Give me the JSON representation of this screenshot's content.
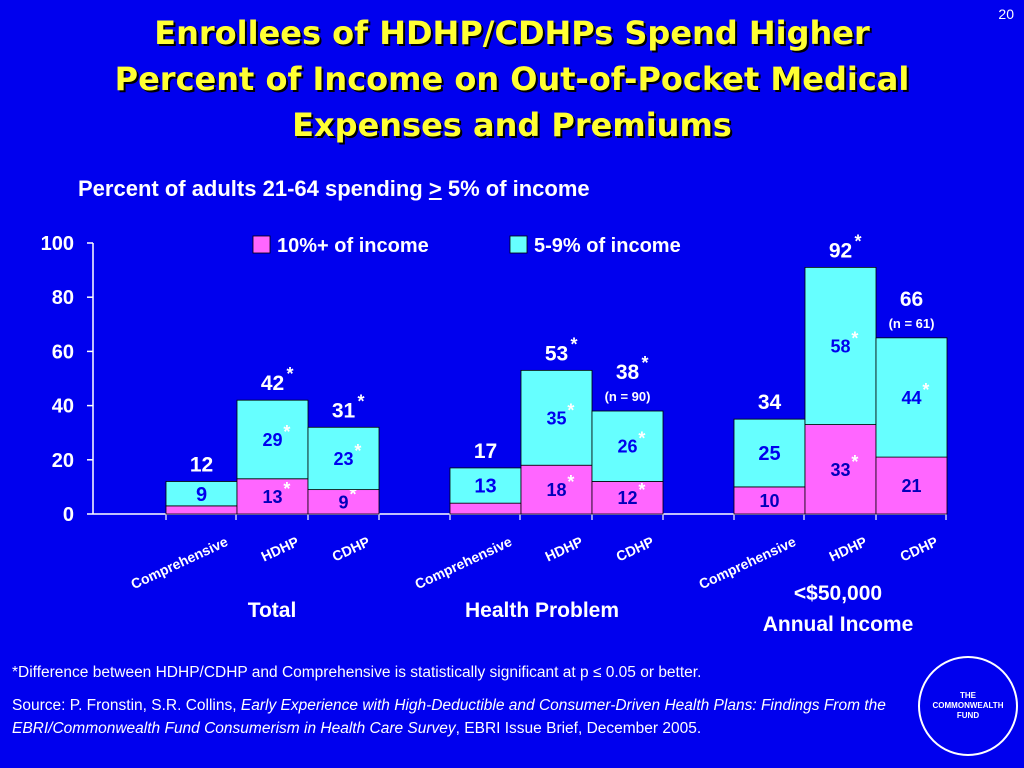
{
  "slide_number": "20",
  "title_lines": [
    "Enrollees of HDHP/CDHPs Spend Higher",
    "Percent of Income on Out-of-Pocket Medical",
    "Expenses and Premiums"
  ],
  "subtitle": {
    "before": "Percent of adults 21-64 spending ",
    "symbol": ">",
    "after": " 5% of income"
  },
  "footnote": "*Difference between HDHP/CDHP and Comprehensive is statistically significant at p ≤ 0.05 or better.",
  "source": {
    "prefix": "Source: P. Fronstin, S.R. Collins, ",
    "italic": "Early Experience with High-Deductible and Consumer-Driven Health Plans: Findings From the EBRI/Commonwealth Fund Consumerism in Health Care Survey",
    "suffix": ", EBRI Issue Brief, December 2005."
  },
  "logo_lines": [
    "THE",
    "COMMONWEALTH",
    "FUND"
  ],
  "colors": {
    "background": "#0000ee",
    "title": "#ffff33",
    "series_10plus": "#ff66ff",
    "series_5to9": "#66ffff"
  },
  "chart_data": {
    "type": "bar",
    "stacked": true,
    "ylim": [
      0,
      100
    ],
    "yticks": [
      0,
      20,
      40,
      60,
      80,
      100
    ],
    "grid": false,
    "legend_position": "top",
    "series": [
      {
        "name": "10%+ of income",
        "color": "#ff66ff"
      },
      {
        "name": "5-9% of income",
        "color": "#66ffff"
      }
    ],
    "groups": [
      {
        "label": "Total",
        "bars": [
          {
            "category": "Comprehensive",
            "values": [
              3,
              9
            ],
            "labels": [
              "",
              "9"
            ],
            "stars": [
              false,
              false
            ],
            "total": "12",
            "total_star": false,
            "note": ""
          },
          {
            "category": "HDHP",
            "values": [
              13,
              29
            ],
            "labels": [
              "13",
              "29"
            ],
            "stars": [
              true,
              true
            ],
            "total": "42",
            "total_star": true,
            "note": ""
          },
          {
            "category": "CDHP",
            "values": [
              9,
              23
            ],
            "labels": [
              "9",
              "23"
            ],
            "stars": [
              true,
              true
            ],
            "total": "31",
            "total_star": true,
            "note": ""
          }
        ]
      },
      {
        "label": "Health Problem",
        "bars": [
          {
            "category": "Comprehensive",
            "values": [
              4,
              13
            ],
            "labels": [
              "",
              "13"
            ],
            "stars": [
              false,
              false
            ],
            "total": "17",
            "total_star": false,
            "note": ""
          },
          {
            "category": "HDHP",
            "values": [
              18,
              35
            ],
            "labels": [
              "18",
              "35"
            ],
            "stars": [
              true,
              true
            ],
            "total": "53",
            "total_star": true,
            "note": ""
          },
          {
            "category": "CDHP",
            "values": [
              12,
              26
            ],
            "labels": [
              "12",
              "26"
            ],
            "stars": [
              true,
              true
            ],
            "total": "38",
            "total_star": true,
            "note": "(n = 90)"
          }
        ]
      },
      {
        "label": "<$50,000 Annual Income",
        "label_lines": [
          "<$50,000",
          "Annual Income"
        ],
        "bars": [
          {
            "category": "Comprehensive",
            "values": [
              10,
              25
            ],
            "labels": [
              "10",
              "25"
            ],
            "stars": [
              false,
              false
            ],
            "total": "34",
            "total_star": false,
            "note": ""
          },
          {
            "category": "HDHP",
            "values": [
              33,
              58
            ],
            "labels": [
              "33",
              "58"
            ],
            "stars": [
              true,
              true
            ],
            "total": "92",
            "total_star": true,
            "note": ""
          },
          {
            "category": "CDHP",
            "values": [
              21,
              44
            ],
            "labels": [
              "21",
              "44"
            ],
            "stars": [
              false,
              true
            ],
            "total": "66",
            "total_star": false,
            "note": "(n = 61)"
          }
        ]
      }
    ]
  }
}
